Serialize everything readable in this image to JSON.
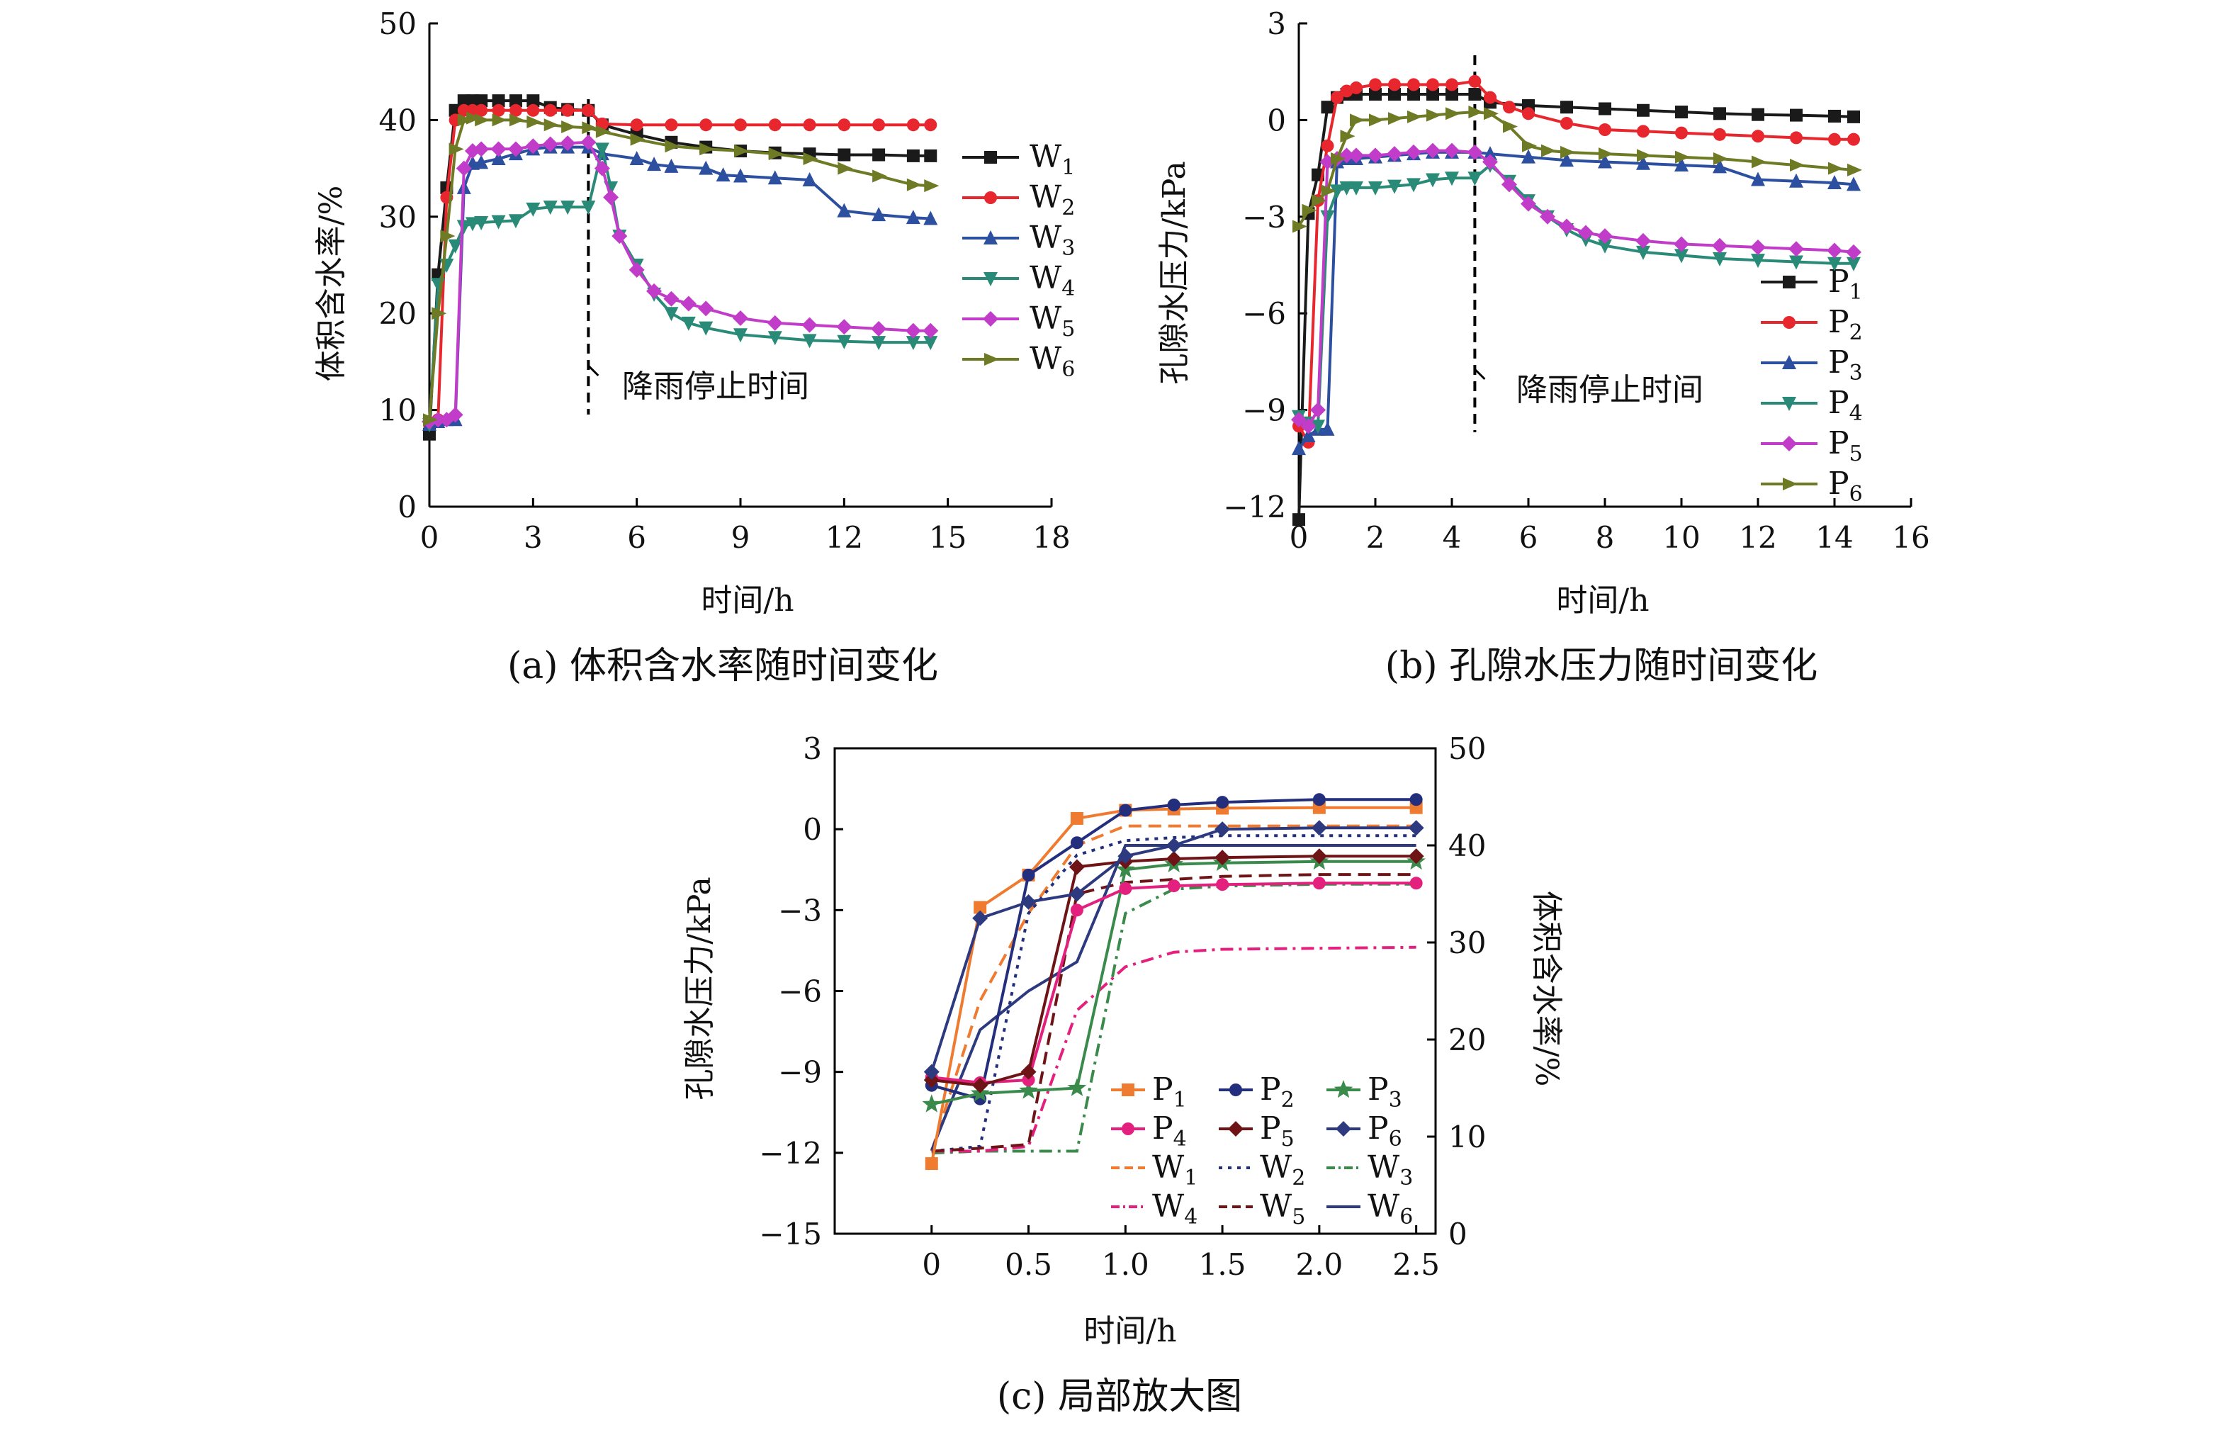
{
  "chart_data": [
    {
      "id": "a",
      "type": "line",
      "caption": "(a) 体积含水率随时间变化",
      "xlabel": "时间/h",
      "ylabel": "体积含水率/%",
      "xlim": [
        0,
        18
      ],
      "ylim": [
        0,
        50
      ],
      "xticks": [
        0,
        3,
        6,
        9,
        12,
        15,
        18
      ],
      "yticks": [
        0,
        10,
        20,
        30,
        40,
        50
      ],
      "legend": "right",
      "annotation": {
        "text": "降雨停止时间",
        "x": 4.6
      },
      "series": [
        {
          "name": "W1",
          "base": "W",
          "sub": "1",
          "color": "#1a1a1a",
          "marker": "square",
          "x": [
            0,
            0.25,
            0.5,
            0.75,
            1,
            1.25,
            1.5,
            2,
            2.5,
            3,
            3.5,
            4,
            4.6,
            5,
            6,
            7,
            8,
            9,
            10,
            11,
            12,
            13,
            14,
            14.5
          ],
          "y": [
            7.5,
            24,
            33,
            41,
            42,
            42,
            42,
            42,
            42,
            42,
            41.3,
            41.1,
            41,
            39.5,
            38.5,
            37.7,
            37.2,
            36.8,
            36.6,
            36.5,
            36.4,
            36.4,
            36.3,
            36.3
          ]
        },
        {
          "name": "W2",
          "base": "W",
          "sub": "2",
          "color": "#e8262d",
          "marker": "circle",
          "x": [
            0,
            0.25,
            0.5,
            0.75,
            1,
            1.25,
            1.5,
            2,
            2.5,
            3,
            3.5,
            4,
            4.6,
            5,
            6,
            7,
            8,
            9,
            10,
            11,
            12,
            13,
            14,
            14.5
          ],
          "y": [
            8.5,
            9,
            32,
            40,
            41,
            41,
            41,
            41,
            41,
            41,
            41,
            41,
            41,
            39.6,
            39.5,
            39.5,
            39.5,
            39.5,
            39.5,
            39.5,
            39.5,
            39.5,
            39.5,
            39.5
          ]
        },
        {
          "name": "W3",
          "base": "W",
          "sub": "3",
          "color": "#2c4fa0",
          "marker": "triangle",
          "x": [
            0,
            0.25,
            0.5,
            0.75,
            1,
            1.25,
            1.5,
            2,
            2.5,
            3,
            3.5,
            4,
            4.6,
            5,
            6,
            6.5,
            7,
            8,
            8.5,
            9,
            10,
            11,
            12,
            13,
            14,
            14.5
          ],
          "y": [
            8.5,
            8.8,
            9,
            9,
            33,
            35.5,
            35.6,
            36,
            36.5,
            37,
            37.2,
            37.2,
            37.2,
            36.5,
            36,
            35.4,
            35.2,
            35,
            34.3,
            34.2,
            34,
            33.8,
            30.6,
            30.2,
            29.9,
            29.8
          ]
        },
        {
          "name": "W4",
          "base": "W",
          "sub": "4",
          "color": "#2a8a78",
          "marker": "triangle-down",
          "x": [
            0,
            0.25,
            0.5,
            0.75,
            1,
            1.25,
            1.5,
            2,
            2.5,
            3,
            3.5,
            4,
            4.6,
            5,
            5.25,
            5.5,
            6,
            6.5,
            7,
            7.5,
            8,
            9,
            10,
            11,
            12,
            13,
            14,
            14.5
          ],
          "y": [
            8.5,
            23,
            25,
            27,
            29,
            29.3,
            29.4,
            29.5,
            29.6,
            30.8,
            31,
            31,
            31,
            37,
            33,
            28,
            25,
            22,
            20,
            19,
            18.5,
            17.8,
            17.5,
            17.2,
            17.1,
            17.0,
            17.0,
            17.0
          ]
        },
        {
          "name": "W5",
          "base": "W",
          "sub": "5",
          "color": "#c13cc8",
          "marker": "diamond",
          "x": [
            0,
            0.25,
            0.5,
            0.75,
            1,
            1.25,
            1.5,
            2,
            2.5,
            3,
            3.5,
            4,
            4.6,
            5,
            5.25,
            5.5,
            6,
            6.5,
            7,
            7.5,
            8,
            9,
            10,
            11,
            12,
            13,
            14,
            14.5
          ],
          "y": [
            8.8,
            9,
            9,
            9.5,
            35,
            36.8,
            37,
            37,
            37,
            37.3,
            37.5,
            37.6,
            37.7,
            35,
            32,
            28,
            24.5,
            22.3,
            21.5,
            21,
            20.5,
            19.5,
            19,
            18.8,
            18.6,
            18.4,
            18.2,
            18.2
          ]
        },
        {
          "name": "W6",
          "base": "W",
          "sub": "6",
          "color": "#6e7a24",
          "marker": "arrow",
          "x": [
            0,
            0.25,
            0.5,
            0.75,
            1,
            1.25,
            1.5,
            2,
            2.5,
            3,
            3.5,
            4,
            4.6,
            5,
            6,
            7,
            8,
            9,
            10,
            11,
            12,
            13,
            14,
            14.5
          ],
          "y": [
            9,
            20,
            28,
            37,
            40,
            40.2,
            40,
            40,
            40,
            39.8,
            39.5,
            39.3,
            39.2,
            38.8,
            38,
            37.3,
            37,
            36.8,
            36.5,
            36,
            35,
            34.2,
            33.3,
            33.2
          ]
        }
      ]
    },
    {
      "id": "b",
      "type": "line",
      "caption": "(b) 孔隙水压力随时间变化",
      "xlabel": "时间/h",
      "ylabel": "孔隙水压力/kPa",
      "xlim": [
        0,
        16
      ],
      "ylim": [
        -12,
        3
      ],
      "xticks": [
        0,
        2,
        4,
        6,
        8,
        10,
        12,
        14,
        16
      ],
      "yticks": [
        -12,
        -9,
        -6,
        -3,
        0,
        3
      ],
      "legend": "bottom-right",
      "annotation": {
        "text": "降雨停止时间",
        "x": 4.6
      },
      "series": [
        {
          "name": "P1",
          "base": "P",
          "sub": "1",
          "color": "#1a1a1a",
          "marker": "square",
          "x": [
            0,
            0.25,
            0.5,
            0.75,
            1,
            1.25,
            1.5,
            2,
            2.5,
            3,
            3.5,
            4,
            4.6,
            5,
            6,
            7,
            8,
            9,
            10,
            11,
            12,
            13,
            14,
            14.5
          ],
          "y": [
            -12.4,
            -2.9,
            -1.7,
            0.4,
            0.7,
            0.8,
            0.8,
            0.8,
            0.8,
            0.8,
            0.8,
            0.8,
            0.8,
            0.55,
            0.45,
            0.4,
            0.35,
            0.3,
            0.25,
            0.2,
            0.17,
            0.15,
            0.12,
            0.1
          ]
        },
        {
          "name": "P2",
          "base": "P",
          "sub": "2",
          "color": "#e8262d",
          "marker": "circle",
          "x": [
            0,
            0.25,
            0.5,
            0.75,
            1,
            1.25,
            1.5,
            2,
            2.5,
            3,
            3.5,
            4,
            4.6,
            5,
            5.5,
            6,
            7,
            8,
            9,
            10,
            11,
            12,
            13,
            14,
            14.5
          ],
          "y": [
            -9.5,
            -10,
            -2.5,
            -0.8,
            0.7,
            0.9,
            1.0,
            1.1,
            1.1,
            1.1,
            1.1,
            1.1,
            1.2,
            0.7,
            0.4,
            0.2,
            -0.1,
            -0.3,
            -0.35,
            -0.4,
            -0.45,
            -0.5,
            -0.55,
            -0.6,
            -0.6
          ]
        },
        {
          "name": "P3",
          "base": "P",
          "sub": "3",
          "color": "#2c4fa0",
          "marker": "triangle",
          "x": [
            0,
            0.25,
            0.5,
            0.75,
            1,
            1.25,
            1.5,
            2,
            2.5,
            3,
            3.5,
            4,
            4.6,
            5,
            6,
            7,
            8,
            9,
            10,
            11,
            12,
            13,
            14,
            14.5
          ],
          "y": [
            -10.2,
            -9.8,
            -9.6,
            -9.6,
            -1.3,
            -1.2,
            -1.2,
            -1.15,
            -1.1,
            -1.05,
            -1.0,
            -1.0,
            -1.0,
            -1.05,
            -1.15,
            -1.25,
            -1.3,
            -1.35,
            -1.4,
            -1.45,
            -1.85,
            -1.9,
            -1.95,
            -2.0
          ]
        },
        {
          "name": "P4",
          "base": "P",
          "sub": "4",
          "color": "#2a8a78",
          "marker": "triangle-down",
          "x": [
            0,
            0.25,
            0.5,
            0.75,
            1,
            1.25,
            1.5,
            2,
            2.5,
            3,
            3.5,
            4,
            4.6,
            5,
            5.5,
            6,
            6.5,
            7,
            7.5,
            8,
            9,
            10,
            11,
            12,
            13,
            14,
            14.5
          ],
          "y": [
            -9.2,
            -9.4,
            -9.5,
            -3.0,
            -2.2,
            -2.1,
            -2.1,
            -2.1,
            -2.05,
            -2.0,
            -1.85,
            -1.8,
            -1.8,
            -1.4,
            -1.9,
            -2.5,
            -3.0,
            -3.4,
            -3.7,
            -3.9,
            -4.1,
            -4.2,
            -4.3,
            -4.35,
            -4.4,
            -4.45,
            -4.45
          ]
        },
        {
          "name": "P5",
          "base": "P",
          "sub": "5",
          "color": "#c13cc8",
          "marker": "diamond",
          "x": [
            0,
            0.25,
            0.5,
            0.75,
            1,
            1.25,
            1.5,
            2,
            2.5,
            3,
            3.5,
            4,
            4.6,
            5,
            5.5,
            6,
            6.5,
            7,
            7.5,
            8,
            9,
            10,
            11,
            12,
            13,
            14,
            14.5
          ],
          "y": [
            -9.3,
            -9.5,
            -9.0,
            -1.3,
            -1.2,
            -1.1,
            -1.1,
            -1.1,
            -1.05,
            -1.0,
            -0.95,
            -0.95,
            -1.0,
            -1.3,
            -2.0,
            -2.6,
            -3.0,
            -3.3,
            -3.5,
            -3.6,
            -3.75,
            -3.85,
            -3.9,
            -3.95,
            -4.0,
            -4.05,
            -4.1
          ]
        },
        {
          "name": "P6",
          "base": "P",
          "sub": "6",
          "color": "#6e7a24",
          "marker": "arrow",
          "x": [
            0,
            0.25,
            0.5,
            0.75,
            1,
            1.25,
            1.5,
            2,
            2.5,
            3,
            3.5,
            4,
            4.6,
            5,
            5.5,
            6,
            6.5,
            7,
            8,
            9,
            10,
            11,
            12,
            13,
            14,
            14.5
          ],
          "y": [
            -3.3,
            -2.8,
            -2.5,
            -2.2,
            -1.2,
            -0.5,
            0.0,
            0.0,
            0.05,
            0.1,
            0.15,
            0.2,
            0.25,
            0.2,
            -0.2,
            -0.8,
            -0.95,
            -1.0,
            -1.05,
            -1.1,
            -1.15,
            -1.2,
            -1.3,
            -1.4,
            -1.5,
            -1.55
          ]
        }
      ]
    },
    {
      "id": "c",
      "type": "line",
      "caption": "(c) 局部放大图",
      "xlabel": "时间/h",
      "ylabel_left": "孔隙水压力/kPa",
      "ylabel_right": "体积含水率/%",
      "xlim": [
        -0.5,
        2.6
      ],
      "ylim_left": [
        -15,
        3
      ],
      "ylim_right": [
        0,
        50
      ],
      "xticks": [
        0,
        0.5,
        1.0,
        1.5,
        2.0,
        2.5
      ],
      "xtick_labels": [
        "0",
        "0.5",
        "1.0",
        "1.5",
        "2.0",
        "2.5"
      ],
      "yticks_left": [
        -15,
        -12,
        -9,
        -6,
        -3,
        0,
        3
      ],
      "yticks_right": [
        0,
        10,
        20,
        30,
        40,
        50
      ],
      "legend": "inside-lower-right",
      "x": [
        0,
        0.25,
        0.5,
        0.75,
        1.0,
        1.25,
        1.5,
        2.0,
        2.5
      ],
      "series": [
        {
          "name": "P1",
          "base": "P",
          "sub": "1",
          "axis": "left",
          "style": "solid",
          "color": "#ef7b30",
          "marker": "square",
          "y": [
            -12.4,
            -2.9,
            -1.7,
            0.4,
            0.7,
            0.75,
            0.78,
            0.8,
            0.8
          ]
        },
        {
          "name": "P2",
          "base": "P",
          "sub": "2",
          "axis": "left",
          "style": "solid",
          "color": "#232f7d",
          "marker": "circle",
          "y": [
            -9.5,
            -10,
            -1.7,
            -0.5,
            0.7,
            0.9,
            1.0,
            1.1,
            1.1
          ]
        },
        {
          "name": "P3",
          "base": "P",
          "sub": "3",
          "axis": "left",
          "style": "solid",
          "color": "#3a8a4c",
          "marker": "star",
          "y": [
            -10.2,
            -9.8,
            -9.7,
            -9.6,
            -1.5,
            -1.3,
            -1.25,
            -1.2,
            -1.2
          ]
        },
        {
          "name": "P4",
          "base": "P",
          "sub": "4",
          "axis": "left",
          "style": "solid",
          "color": "#e3207d",
          "marker": "circle",
          "y": [
            -9.2,
            -9.4,
            -9.3,
            -3.0,
            -2.2,
            -2.1,
            -2.05,
            -2.0,
            -2.0
          ]
        },
        {
          "name": "P5",
          "base": "P",
          "sub": "5",
          "axis": "left",
          "style": "solid",
          "color": "#6e1416",
          "marker": "diamond",
          "y": [
            -9.3,
            -9.5,
            -9.0,
            -1.4,
            -1.2,
            -1.1,
            -1.05,
            -1.0,
            -1.0
          ]
        },
        {
          "name": "P6",
          "base": "P",
          "sub": "6",
          "axis": "left",
          "style": "solid",
          "color": "#2e3a80",
          "marker": "diamond",
          "y": [
            -9.0,
            -3.3,
            -2.7,
            -2.4,
            -1.0,
            -0.6,
            0.0,
            0.05,
            0.05
          ]
        },
        {
          "name": "W1",
          "base": "W",
          "sub": "1",
          "axis": "right",
          "style": "dashed",
          "color": "#ef7b30",
          "y": [
            8.5,
            24,
            33,
            40,
            42,
            42,
            42,
            42,
            42
          ]
        },
        {
          "name": "W2",
          "base": "W",
          "sub": "2",
          "axis": "right",
          "style": "dotted",
          "color": "#232f7d",
          "y": [
            8.5,
            9,
            33,
            39,
            40.5,
            40.8,
            41,
            41,
            41
          ]
        },
        {
          "name": "W3",
          "base": "W",
          "sub": "3",
          "axis": "right",
          "style": "dashdot",
          "color": "#3a8a4c",
          "y": [
            8.3,
            8.5,
            8.5,
            8.5,
            33,
            35.5,
            35.8,
            36,
            36
          ]
        },
        {
          "name": "W4",
          "base": "W",
          "sub": "4",
          "axis": "right",
          "style": "dashdot",
          "color": "#e3207d",
          "y": [
            8.5,
            8.5,
            9,
            23,
            27.5,
            29,
            29.3,
            29.4,
            29.5
          ]
        },
        {
          "name": "W5",
          "base": "W",
          "sub": "5",
          "axis": "right",
          "style": "dashed",
          "color": "#6e1416",
          "y": [
            8.5,
            8.8,
            9.2,
            35,
            36.2,
            36.5,
            36.8,
            37,
            37
          ]
        },
        {
          "name": "W6",
          "base": "W",
          "sub": "6",
          "axis": "right",
          "style": "solid",
          "color": "#2e3a80",
          "y": [
            8.6,
            21,
            25,
            28,
            40,
            40,
            40,
            40,
            40
          ]
        }
      ]
    }
  ]
}
